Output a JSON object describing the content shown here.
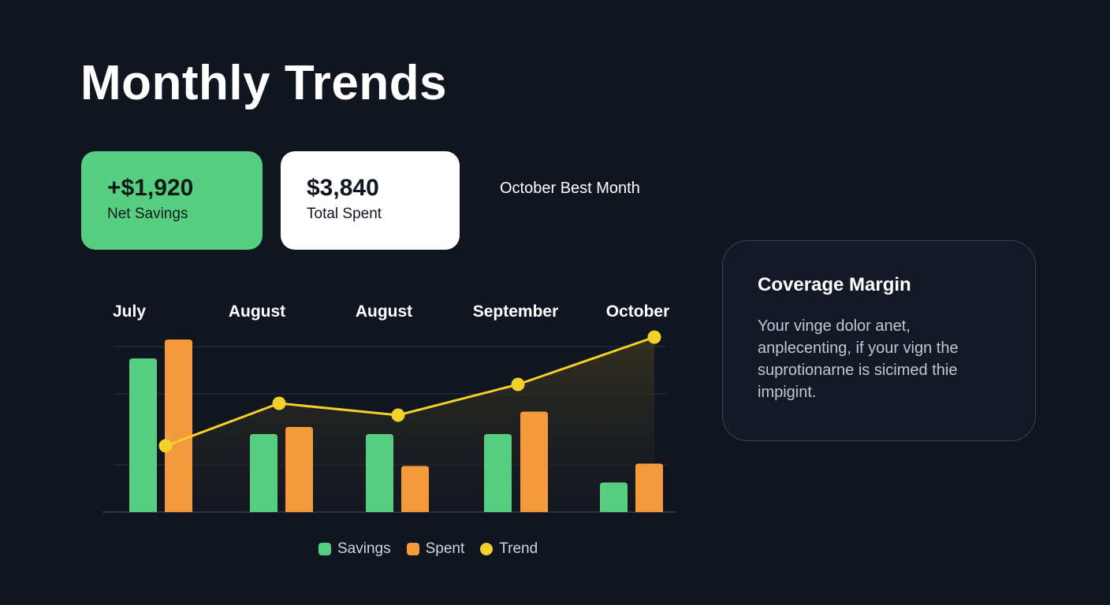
{
  "header": {
    "title": "Monthly Trends"
  },
  "stats": [
    {
      "value": "+$1,920",
      "label": "Net Savings"
    },
    {
      "value": "$3,840",
      "label": "Total Spent"
    }
  ],
  "highlight": "October Best Month",
  "info_card": {
    "title": "Coverage Margin",
    "body": "Your vinge dolor anet, anplecenting, if your vign the suprotionarne is sicimed thie impigint."
  },
  "colors": {
    "background": "#111520",
    "savings": "#57cf83",
    "spent": "#f39a3c",
    "trend": "#f2d12a",
    "grid": "#2c3240"
  },
  "chart_data": {
    "type": "bar",
    "categories": [
      "July",
      "August",
      "August",
      "September",
      "October"
    ],
    "series": [
      {
        "name": "Savings",
        "type": "bar",
        "values": [
          65,
          33,
          33,
          33,
          12.5
        ]
      },
      {
        "name": "Spent",
        "type": "bar",
        "values": [
          73,
          36,
          19.5,
          42.5,
          20.5
        ]
      },
      {
        "name": "Trend",
        "type": "line",
        "values": [
          28,
          46,
          41,
          54,
          74
        ]
      }
    ],
    "ylim": [
      0,
      100
    ],
    "grid": true,
    "legend_position": "bottom",
    "legend": [
      "Savings",
      "Spent",
      "Trend"
    ]
  }
}
